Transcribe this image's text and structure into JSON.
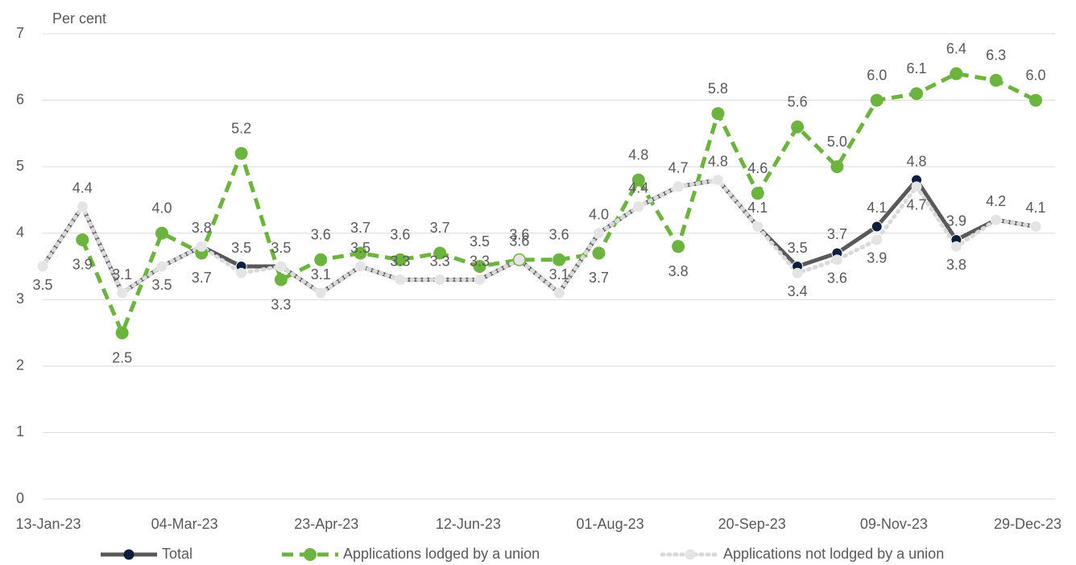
{
  "chart_data": {
    "type": "line",
    "y_label": "Per cent",
    "x": [
      "13-Jan-23",
      "27-Jan-23",
      "10-Feb-23",
      "24-Feb-23",
      "10-Mar-23",
      "24-Mar-23",
      "07-Apr-23",
      "21-Apr-23",
      "05-May-23",
      "19-May-23",
      "02-Jun-23",
      "16-Jun-23",
      "30-Jun-23",
      "14-Jul-23",
      "28-Jul-23",
      "11-Aug-23",
      "25-Aug-23",
      "08-Sep-23",
      "22-Sep-23",
      "06-Oct-23",
      "20-Oct-23",
      "03-Nov-23",
      "17-Nov-23",
      "01-Dec-23",
      "15-Dec-23",
      "29-Dec-23"
    ],
    "xlim": [
      "13-Jan-23",
      "29-Dec-23"
    ],
    "xticks": [
      "13-Jan-23",
      "04-Mar-23",
      "23-Apr-23",
      "12-Jun-23",
      "01-Aug-23",
      "20-Sep-23",
      "09-Nov-23",
      "29-Dec-23"
    ],
    "ylim": [
      0,
      7
    ],
    "yticks": [
      0,
      1,
      2,
      3,
      4,
      5,
      6,
      7
    ],
    "grid": true,
    "legend": "bottom",
    "series": [
      {
        "name": "Total",
        "color": "#595959",
        "marker_color": "#0d1f3c",
        "dash": "solid",
        "values": [
          3.5,
          4.4,
          3.1,
          3.5,
          3.8,
          3.5,
          3.5,
          3.1,
          3.5,
          3.3,
          3.3,
          3.3,
          3.6,
          3.1,
          4.0,
          4.4,
          4.7,
          4.8,
          4.1,
          3.5,
          3.7,
          4.1,
          4.8,
          3.9,
          4.2,
          4.1
        ],
        "value_labels": [
          null,
          "4.4",
          "3.1",
          null,
          "3.8",
          "3.5",
          "3.5",
          "3.1",
          "3.5",
          "3.3",
          "3.3",
          "3.3",
          "3.6",
          "3.1",
          "4.0",
          "4.4",
          "4.7",
          "4.8",
          "4.1",
          "3.5",
          "3.7",
          "4.1",
          "4.8",
          "3.9",
          "4.2",
          "4.1"
        ]
      },
      {
        "name": "Applications lodged by a union",
        "color": "#6db33f",
        "marker_color": "#6db33f",
        "dash": "dashed",
        "values": [
          null,
          3.9,
          2.5,
          4.0,
          3.7,
          5.2,
          3.3,
          3.6,
          3.7,
          3.6,
          3.7,
          3.5,
          3.6,
          3.6,
          3.7,
          4.8,
          3.8,
          5.8,
          4.6,
          5.6,
          5.0,
          6.0,
          6.1,
          6.4,
          6.3,
          6.0
        ],
        "value_labels": [
          null,
          "3.9",
          "2.5",
          "4.0",
          "3.7",
          "5.2",
          "3.3",
          "3.6",
          "3.7",
          "3.6",
          "3.7",
          "3.5",
          "3.6",
          "3.6",
          "3.7",
          "4.8",
          "3.8",
          "5.8",
          "4.6",
          "5.6",
          "5.0",
          "6.0",
          "6.1",
          "6.4",
          "6.3",
          "6.0"
        ]
      },
      {
        "name": "Applications not lodged by a union",
        "color": "#d9d9d9",
        "marker_color": "#e4e4e4",
        "dash": "dotted",
        "values": [
          3.5,
          4.4,
          3.1,
          3.5,
          3.8,
          3.4,
          3.5,
          3.1,
          3.5,
          3.3,
          3.3,
          3.3,
          3.6,
          3.1,
          4.0,
          4.4,
          4.7,
          4.8,
          4.1,
          3.4,
          3.6,
          3.9,
          4.7,
          3.8,
          4.2,
          4.1
        ],
        "value_labels": [
          "3.5",
          null,
          null,
          "3.5",
          null,
          null,
          null,
          null,
          null,
          null,
          null,
          null,
          null,
          null,
          null,
          null,
          null,
          null,
          null,
          "3.4",
          "3.6",
          "3.9",
          "4.7",
          "3.8",
          null,
          null
        ]
      }
    ]
  }
}
